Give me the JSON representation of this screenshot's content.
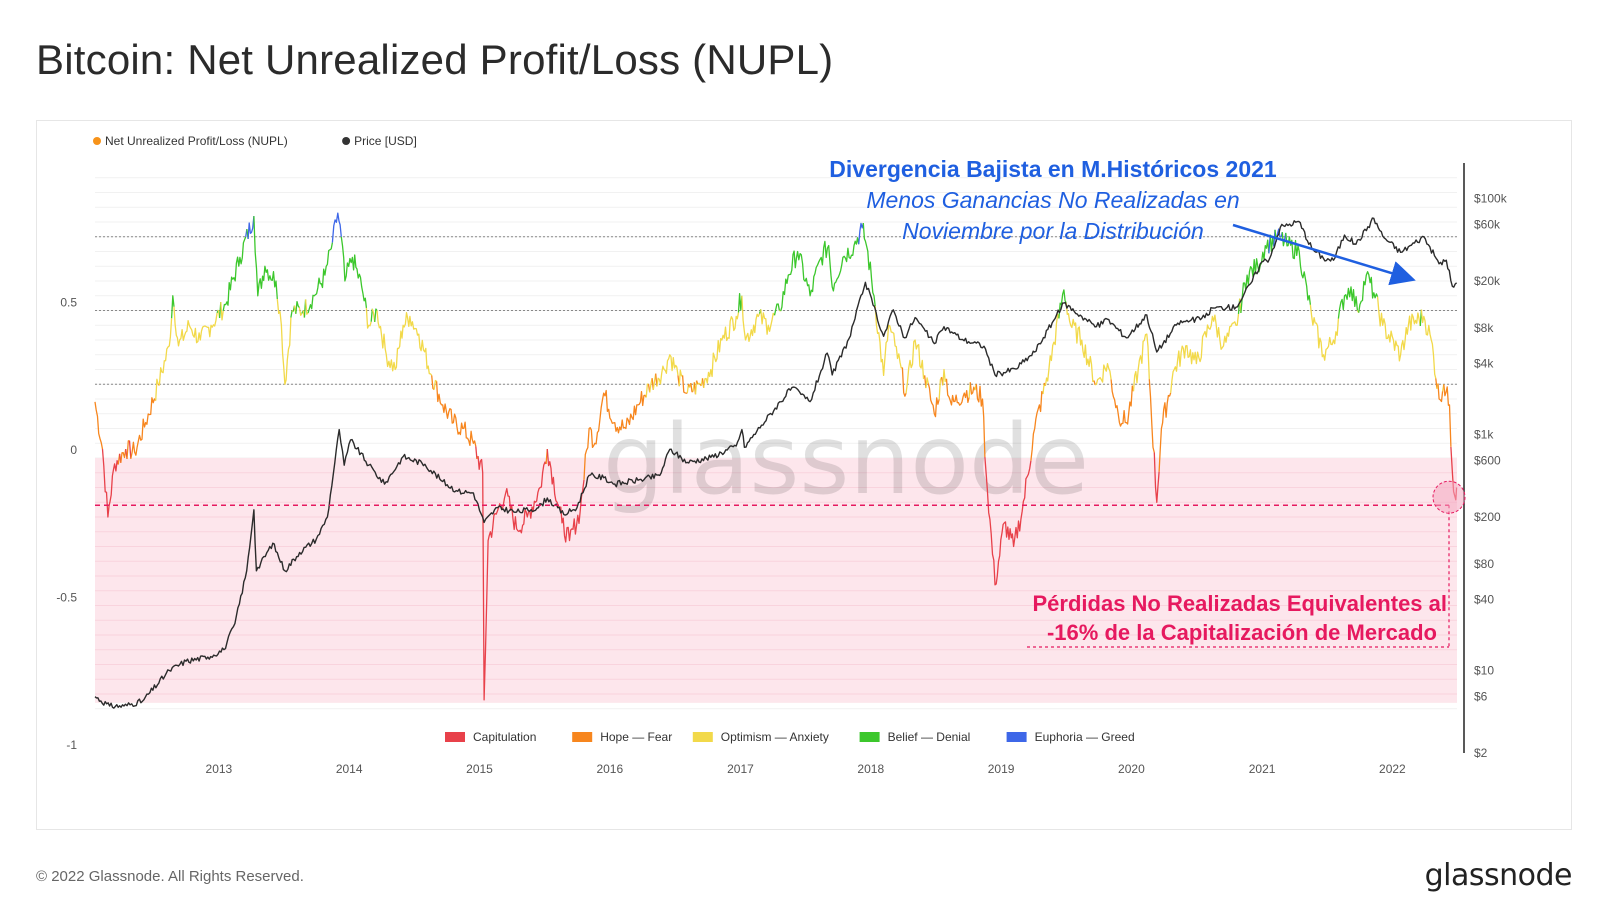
{
  "title": "Bitcoin: Net Unrealized Profit/Loss (NUPL)",
  "footer": {
    "copyright": "© 2022 Glassnode. All Rights Reserved.",
    "logo": "glassnode"
  },
  "chart_data": {
    "type": "line",
    "watermark": "glassnode",
    "legend_top": [
      {
        "label": "Net Unrealized Profit/Loss (NUPL)",
        "color": "#f7931a"
      },
      {
        "label": "Price [USD]",
        "color": "#333333"
      }
    ],
    "legend_bottom": [
      {
        "label": "Capitulation",
        "color": "#e8414a"
      },
      {
        "label": "Hope — Fear",
        "color": "#f7861e"
      },
      {
        "label": "Optimism — Anxiety",
        "color": "#f2d94a"
      },
      {
        "label": "Belief — Denial",
        "color": "#3cc72c"
      },
      {
        "label": "Euphoria — Greed",
        "color": "#3e67e8"
      }
    ],
    "x_range": [
      "2012-01-20",
      "2022-07-01"
    ],
    "x_ticks": [
      "2013",
      "2014",
      "2015",
      "2016",
      "2017",
      "2018",
      "2019",
      "2020",
      "2021",
      "2022"
    ],
    "y_left_range": [
      -1,
      1
    ],
    "y_left_ticks": [
      "0.5",
      "0",
      "-0.5",
      "-1"
    ],
    "y_right_scale": "log",
    "y_right_range": [
      2,
      200000
    ],
    "y_right_ticks": [
      {
        "label": "$100k",
        "value": 100000
      },
      {
        "label": "$60k",
        "value": 60000
      },
      {
        "label": "$20k",
        "value": 20000
      },
      {
        "label": "$8k",
        "value": 8000
      },
      {
        "label": "$4k",
        "value": 4000
      },
      {
        "label": "$1k",
        "value": 1000
      },
      {
        "label": "$600",
        "value": 600
      },
      {
        "label": "$200",
        "value": 200
      },
      {
        "label": "$80",
        "value": 80
      },
      {
        "label": "$40",
        "value": 40
      },
      {
        "label": "$10",
        "value": 10
      },
      {
        "label": "$6",
        "value": 6
      },
      {
        "label": "$2",
        "value": 2
      }
    ],
    "zone_thresholds": [
      0,
      0.25,
      0.5,
      0.75
    ],
    "nupl": [
      [
        "2012-01-20",
        0.19
      ],
      [
        "2012-02-10",
        0.03
      ],
      [
        "2012-02-25",
        -0.2
      ],
      [
        "2012-03-15",
        -0.02
      ],
      [
        "2012-04-15",
        0.03
      ],
      [
        "2012-05-10",
        0.02
      ],
      [
        "2012-06-10",
        0.12
      ],
      [
        "2012-07-15",
        0.25
      ],
      [
        "2012-08-15",
        0.38
      ],
      [
        "2012-08-25",
        0.55
      ],
      [
        "2012-09-10",
        0.38
      ],
      [
        "2012-10-10",
        0.45
      ],
      [
        "2012-11-10",
        0.4
      ],
      [
        "2012-12-10",
        0.45
      ],
      [
        "2013-01-20",
        0.52
      ],
      [
        "2013-03-01",
        0.68
      ],
      [
        "2013-04-09",
        0.82
      ],
      [
        "2013-04-20",
        0.55
      ],
      [
        "2013-05-10",
        0.65
      ],
      [
        "2013-06-10",
        0.6
      ],
      [
        "2013-06-25",
        0.45
      ],
      [
        "2013-07-05",
        0.25
      ],
      [
        "2013-07-25",
        0.5
      ],
      [
        "2013-08-25",
        0.5
      ],
      [
        "2013-09-25",
        0.55
      ],
      [
        "2013-10-25",
        0.62
      ],
      [
        "2013-11-15",
        0.73
      ],
      [
        "2013-11-30",
        0.83
      ],
      [
        "2013-12-10",
        0.75
      ],
      [
        "2013-12-20",
        0.6
      ],
      [
        "2014-01-10",
        0.68
      ],
      [
        "2014-02-05",
        0.58
      ],
      [
        "2014-02-25",
        0.45
      ],
      [
        "2014-03-20",
        0.5
      ],
      [
        "2014-04-15",
        0.35
      ],
      [
        "2014-05-10",
        0.3
      ],
      [
        "2014-06-01",
        0.45
      ],
      [
        "2014-06-20",
        0.48
      ],
      [
        "2014-07-15",
        0.42
      ],
      [
        "2014-08-20",
        0.28
      ],
      [
        "2014-09-20",
        0.18
      ],
      [
        "2014-10-20",
        0.12
      ],
      [
        "2014-11-15",
        0.1
      ],
      [
        "2014-12-15",
        0.05
      ],
      [
        "2015-01-10",
        -0.05
      ],
      [
        "2015-01-14",
        -0.82
      ],
      [
        "2015-01-25",
        -0.28
      ],
      [
        "2015-02-20",
        -0.18
      ],
      [
        "2015-03-15",
        -0.12
      ],
      [
        "2015-04-15",
        -0.24
      ],
      [
        "2015-05-15",
        -0.2
      ],
      [
        "2015-06-20",
        -0.1
      ],
      [
        "2015-07-10",
        0.03
      ],
      [
        "2015-08-20",
        -0.22
      ],
      [
        "2015-09-10",
        -0.28
      ],
      [
        "2015-10-10",
        -0.18
      ],
      [
        "2015-11-04",
        0.1
      ],
      [
        "2015-11-20",
        0.05
      ],
      [
        "2015-12-15",
        0.22
      ],
      [
        "2016-01-15",
        0.12
      ],
      [
        "2016-02-15",
        0.1
      ],
      [
        "2016-03-20",
        0.18
      ],
      [
        "2016-04-25",
        0.25
      ],
      [
        "2016-06-01",
        0.3
      ],
      [
        "2016-06-17",
        0.35
      ],
      [
        "2016-07-10",
        0.28
      ],
      [
        "2016-08-05",
        0.22
      ],
      [
        "2016-09-10",
        0.25
      ],
      [
        "2016-10-10",
        0.3
      ],
      [
        "2016-11-10",
        0.4
      ],
      [
        "2016-12-20",
        0.48
      ],
      [
        "2017-01-05",
        0.55
      ],
      [
        "2017-01-15",
        0.4
      ],
      [
        "2017-02-20",
        0.48
      ],
      [
        "2017-03-20",
        0.45
      ],
      [
        "2017-04-20",
        0.5
      ],
      [
        "2017-05-15",
        0.62
      ],
      [
        "2017-06-10",
        0.7
      ],
      [
        "2017-07-15",
        0.55
      ],
      [
        "2017-08-15",
        0.68
      ],
      [
        "2017-09-05",
        0.72
      ],
      [
        "2017-09-15",
        0.58
      ],
      [
        "2017-10-15",
        0.68
      ],
      [
        "2017-11-15",
        0.72
      ],
      [
        "2017-12-08",
        0.78
      ],
      [
        "2017-12-20",
        0.72
      ],
      [
        "2018-01-10",
        0.55
      ],
      [
        "2018-02-06",
        0.28
      ],
      [
        "2018-02-20",
        0.45
      ],
      [
        "2018-03-10",
        0.38
      ],
      [
        "2018-04-10",
        0.22
      ],
      [
        "2018-05-05",
        0.4
      ],
      [
        "2018-06-01",
        0.28
      ],
      [
        "2018-06-28",
        0.15
      ],
      [
        "2018-07-25",
        0.3
      ],
      [
        "2018-08-15",
        0.18
      ],
      [
        "2018-09-20",
        0.22
      ],
      [
        "2018-10-20",
        0.23
      ],
      [
        "2018-11-10",
        0.2
      ],
      [
        "2018-11-20",
        -0.05
      ],
      [
        "2018-12-15",
        -0.43
      ],
      [
        "2019-01-10",
        -0.22
      ],
      [
        "2019-02-05",
        -0.3
      ],
      [
        "2019-03-01",
        -0.18
      ],
      [
        "2019-04-05",
        0.1
      ],
      [
        "2019-05-15",
        0.3
      ],
      [
        "2019-06-26",
        0.57
      ],
      [
        "2019-07-15",
        0.45
      ],
      [
        "2019-08-15",
        0.4
      ],
      [
        "2019-09-25",
        0.25
      ],
      [
        "2019-10-26",
        0.32
      ],
      [
        "2019-11-25",
        0.15
      ],
      [
        "2019-12-18",
        0.12
      ],
      [
        "2020-01-20",
        0.3
      ],
      [
        "2020-02-13",
        0.42
      ],
      [
        "2020-03-12",
        -0.15
      ],
      [
        "2020-03-25",
        0.1
      ],
      [
        "2020-04-30",
        0.3
      ],
      [
        "2020-06-01",
        0.38
      ],
      [
        "2020-07-01",
        0.32
      ],
      [
        "2020-08-15",
        0.48
      ],
      [
        "2020-09-15",
        0.38
      ],
      [
        "2020-10-20",
        0.45
      ],
      [
        "2020-11-20",
        0.62
      ],
      [
        "2020-12-20",
        0.65
      ],
      [
        "2021-01-10",
        0.72
      ],
      [
        "2021-02-20",
        0.75
      ],
      [
        "2021-03-15",
        0.72
      ],
      [
        "2021-04-15",
        0.7
      ],
      [
        "2021-05-20",
        0.48
      ],
      [
        "2021-06-22",
        0.35
      ],
      [
        "2021-07-20",
        0.4
      ],
      [
        "2021-08-20",
        0.55
      ],
      [
        "2021-09-07",
        0.58
      ],
      [
        "2021-09-25",
        0.5
      ],
      [
        "2021-10-20",
        0.62
      ],
      [
        "2021-11-10",
        0.56
      ],
      [
        "2021-12-05",
        0.45
      ],
      [
        "2022-01-24",
        0.35
      ],
      [
        "2022-02-15",
        0.45
      ],
      [
        "2022-03-30",
        0.48
      ],
      [
        "2022-04-20",
        0.4
      ],
      [
        "2022-05-12",
        0.2
      ],
      [
        "2022-05-25",
        0.25
      ],
      [
        "2022-06-10",
        0.18
      ],
      [
        "2022-06-18",
        -0.05
      ],
      [
        "2022-06-25",
        -0.13
      ],
      [
        "2022-06-30",
        -0.1
      ]
    ],
    "price": [
      [
        "2012-01-20",
        6
      ],
      [
        "2012-03-01",
        5
      ],
      [
        "2012-04-10",
        5
      ],
      [
        "2012-06-01",
        5.5
      ],
      [
        "2012-08-15",
        10
      ],
      [
        "2012-10-01",
        12
      ],
      [
        "2012-12-01",
        13
      ],
      [
        "2013-01-15",
        15
      ],
      [
        "2013-02-15",
        25
      ],
      [
        "2013-03-20",
        70
      ],
      [
        "2013-04-09",
        230
      ],
      [
        "2013-04-16",
        70
      ],
      [
        "2013-06-01",
        120
      ],
      [
        "2013-07-05",
        70
      ],
      [
        "2013-08-15",
        100
      ],
      [
        "2013-10-01",
        130
      ],
      [
        "2013-11-01",
        200
      ],
      [
        "2013-12-04",
        1100
      ],
      [
        "2013-12-18",
        550
      ],
      [
        "2014-01-05",
        900
      ],
      [
        "2014-02-25",
        550
      ],
      [
        "2014-04-10",
        380
      ],
      [
        "2014-06-01",
        650
      ],
      [
        "2014-08-01",
        560
      ],
      [
        "2014-09-20",
        400
      ],
      [
        "2014-11-01",
        330
      ],
      [
        "2014-12-15",
        320
      ],
      [
        "2015-01-14",
        180
      ],
      [
        "2015-02-20",
        240
      ],
      [
        "2015-04-15",
        220
      ],
      [
        "2015-06-15",
        240
      ],
      [
        "2015-07-10",
        290
      ],
      [
        "2015-08-25",
        210
      ],
      [
        "2015-10-01",
        240
      ],
      [
        "2015-11-04",
        450
      ],
      [
        "2015-12-15",
        430
      ],
      [
        "2016-01-15",
        380
      ],
      [
        "2016-03-20",
        410
      ],
      [
        "2016-05-20",
        450
      ],
      [
        "2016-06-17",
        750
      ],
      [
        "2016-08-05",
        580
      ],
      [
        "2016-10-10",
        640
      ],
      [
        "2016-12-20",
        800
      ],
      [
        "2017-01-05",
        1100
      ],
      [
        "2017-01-12",
        780
      ],
      [
        "2017-03-01",
        1200
      ],
      [
        "2017-05-25",
        2500
      ],
      [
        "2017-07-15",
        1900
      ],
      [
        "2017-09-01",
        4900
      ],
      [
        "2017-09-15",
        3200
      ],
      [
        "2017-11-01",
        6500
      ],
      [
        "2017-12-17",
        19500
      ],
      [
        "2018-02-06",
        6800
      ],
      [
        "2018-03-05",
        11400
      ],
      [
        "2018-04-06",
        6600
      ],
      [
        "2018-05-05",
        9800
      ],
      [
        "2018-06-28",
        5900
      ],
      [
        "2018-07-25",
        8200
      ],
      [
        "2018-09-15",
        6400
      ],
      [
        "2018-11-14",
        5600
      ],
      [
        "2018-12-15",
        3200
      ],
      [
        "2019-02-10",
        3600
      ],
      [
        "2019-04-05",
        5000
      ],
      [
        "2019-06-26",
        13000
      ],
      [
        "2019-08-15",
        10000
      ],
      [
        "2019-09-25",
        8200
      ],
      [
        "2019-10-26",
        9500
      ],
      [
        "2019-12-18",
        6600
      ],
      [
        "2020-02-13",
        10300
      ],
      [
        "2020-03-12",
        5000
      ],
      [
        "2020-05-10",
        8800
      ],
      [
        "2020-07-25",
        9800
      ],
      [
        "2020-08-15",
        11800
      ],
      [
        "2020-10-20",
        12000
      ],
      [
        "2020-11-30",
        19000
      ],
      [
        "2020-12-31",
        29000
      ],
      [
        "2021-01-22",
        31000
      ],
      [
        "2021-02-21",
        57000
      ],
      [
        "2021-04-14",
        64000
      ],
      [
        "2021-05-20",
        38000
      ],
      [
        "2021-06-22",
        31000
      ],
      [
        "2021-07-20",
        30000
      ],
      [
        "2021-08-20",
        49000
      ],
      [
        "2021-09-21",
        41000
      ],
      [
        "2021-11-10",
        68000
      ],
      [
        "2021-12-05",
        48000
      ],
      [
        "2022-01-24",
        35000
      ],
      [
        "2022-03-30",
        47500
      ],
      [
        "2022-05-12",
        28000
      ],
      [
        "2022-06-01",
        30000
      ],
      [
        "2022-06-18",
        18000
      ],
      [
        "2022-06-30",
        19300
      ]
    ],
    "reference_level": -0.16,
    "annotations": {
      "divergence": {
        "heading": "Divergencia Bajista en M.Históricos 2021",
        "line1": "Menos Ganancias No Realizadas en",
        "line2": "Noviembre por la Distribución",
        "color": "#1f5fe0"
      },
      "losses": {
        "line1": "Pérdidas No Realizadas Equivalentes al",
        "line2": "-16% de la Capitalización de Mercado",
        "color": "#e6195f"
      }
    }
  }
}
